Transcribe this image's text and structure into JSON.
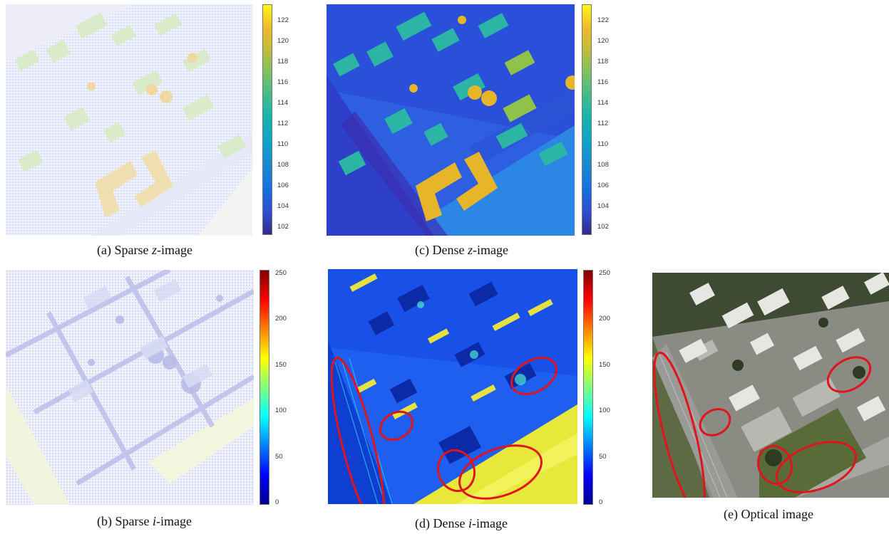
{
  "figure": {
    "captions": {
      "a": {
        "prefix": "(a) Sparse ",
        "var": "z",
        "suffix": "-image"
      },
      "b": {
        "prefix": "(b) Sparse ",
        "var": "i",
        "suffix": "-image"
      },
      "c": {
        "prefix": "(c) Dense ",
        "var": "z",
        "suffix": "-image"
      },
      "d": {
        "prefix": "(d) Dense ",
        "var": "i",
        "suffix": "-image"
      },
      "e": {
        "prefix": "(e) Optical image",
        "var": "",
        "suffix": ""
      }
    },
    "colorbar_z": {
      "ticks": [
        "122",
        "120",
        "118",
        "116",
        "114",
        "112",
        "110",
        "108",
        "106",
        "104",
        "102"
      ],
      "range": [
        101,
        123.5
      ],
      "colormap": "parula"
    },
    "colorbar_i": {
      "ticks": [
        "250",
        "200",
        "150",
        "100",
        "50",
        "0"
      ],
      "range": [
        0,
        255
      ],
      "colormap": "jet"
    },
    "highlight_color": "#e0141c"
  }
}
